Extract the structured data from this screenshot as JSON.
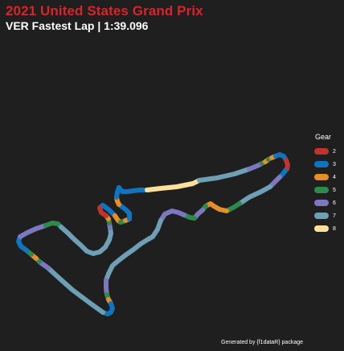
{
  "chart_data": {
    "type": "track-map",
    "title": "2021 United States Grand Prix",
    "subtitle": "VER Fastest Lap | 1:39.096",
    "caption": "Generated by {f1dataR} package",
    "legend": {
      "title": "Gear",
      "position": "right",
      "entries": [
        {
          "label": "2",
          "gear": 2,
          "color": "#c2342b"
        },
        {
          "label": "3",
          "gear": 3,
          "color": "#0f75c0"
        },
        {
          "label": "4",
          "gear": 4,
          "color": "#e78e2a"
        },
        {
          "label": "5",
          "gear": 5,
          "color": "#2c8a4b"
        },
        {
          "label": "6",
          "gear": 6,
          "color": "#7d76c1"
        },
        {
          "label": "7",
          "gear": 7,
          "color": "#6d9fb5"
        },
        {
          "label": "8",
          "gear": 8,
          "color": "#fde09b"
        }
      ]
    },
    "segments": [
      {
        "gear": 3,
        "x": [
          148,
          152,
          158,
          166,
          174,
          183
        ],
        "y": [
          233,
          238,
          238,
          237,
          236,
          236
        ]
      },
      {
        "gear": 8,
        "x": [
          183,
          200,
          220,
          240,
          248
        ],
        "y": [
          236,
          234,
          232,
          228,
          224
        ]
      },
      {
        "gear": 7,
        "x": [
          248,
          270,
          292,
          310
        ],
        "y": [
          224,
          221,
          216,
          210
        ]
      },
      {
        "gear": 6,
        "x": [
          310,
          320,
          326
        ],
        "y": [
          210,
          206,
          203
        ]
      },
      {
        "gear": 5,
        "x": [
          326,
          330
        ],
        "y": [
          203,
          201
        ]
      },
      {
        "gear": 4,
        "x": [
          330,
          334
        ],
        "y": [
          201,
          198
        ]
      },
      {
        "gear": 5,
        "x": [
          334,
          338
        ],
        "y": [
          198,
          196
        ]
      },
      {
        "gear": 4,
        "x": [
          338,
          343
        ],
        "y": [
          196,
          194
        ]
      },
      {
        "gear": 3,
        "x": [
          343,
          348,
          353,
          356
        ],
        "y": [
          194,
          192,
          194,
          199
        ]
      },
      {
        "gear": 2,
        "x": [
          356,
          358,
          357,
          355
        ],
        "y": [
          199,
          205,
          210,
          212
        ]
      },
      {
        "gear": 3,
        "x": [
          355,
          352,
          348
        ],
        "y": [
          212,
          216,
          220
        ]
      },
      {
        "gear": 6,
        "x": [
          348,
          342,
          336
        ],
        "y": [
          220,
          226,
          232
        ]
      },
      {
        "gear": 7,
        "x": [
          336,
          325,
          310,
          298
        ],
        "y": [
          232,
          238,
          245,
          253
        ]
      },
      {
        "gear": 5,
        "x": [
          298,
          290,
          282
        ],
        "y": [
          253,
          258,
          262
        ]
      },
      {
        "gear": 4,
        "x": [
          282,
          273,
          266,
          262,
          256
        ],
        "y": [
          262,
          260,
          256,
          253,
          256
        ]
      },
      {
        "gear": 5,
        "x": [
          256,
          252
        ],
        "y": [
          256,
          261
        ]
      },
      {
        "gear": 6,
        "x": [
          252,
          246,
          242
        ],
        "y": [
          261,
          266,
          271
        ]
      },
      {
        "gear": 5,
        "x": [
          242,
          236,
          229
        ],
        "y": [
          271,
          270,
          267
        ]
      },
      {
        "gear": 6,
        "x": [
          229,
          222,
          214,
          205,
          200
        ],
        "y": [
          267,
          264,
          262,
          266,
          274
        ]
      },
      {
        "gear": 7,
        "x": [
          200,
          196,
          190,
          183,
          175,
          166,
          156,
          147,
          140,
          135,
          132
        ],
        "y": [
          274,
          285,
          294,
          298,
          303,
          310,
          317,
          324,
          330,
          340,
          348
        ]
      },
      {
        "gear": 6,
        "x": [
          132,
          132,
          133
        ],
        "y": [
          348,
          358,
          366
        ]
      },
      {
        "gear": 5,
        "x": [
          133,
          135
        ],
        "y": [
          366,
          372
        ]
      },
      {
        "gear": 4,
        "x": [
          135,
          138
        ],
        "y": [
          372,
          377
        ]
      },
      {
        "gear": 3,
        "x": [
          138,
          140,
          138,
          134,
          128
        ],
        "y": [
          377,
          383,
          388,
          390,
          388
        ]
      },
      {
        "gear": 7,
        "x": [
          128,
          110,
          90,
          72,
          60
        ],
        "y": [
          388,
          375,
          360,
          344,
          333
        ]
      },
      {
        "gear": 6,
        "x": [
          60,
          53,
          49
        ],
        "y": [
          333,
          328,
          325
        ]
      },
      {
        "gear": 5,
        "x": [
          49,
          45
        ],
        "y": [
          325,
          321
        ]
      },
      {
        "gear": 4,
        "x": [
          45,
          39
        ],
        "y": [
          321,
          316
        ]
      },
      {
        "gear": 5,
        "x": [
          39,
          33
        ],
        "y": [
          316,
          311
        ]
      },
      {
        "gear": 3,
        "x": [
          33,
          26,
          23,
          25
        ],
        "y": [
          311,
          306,
          300,
          294
        ]
      },
      {
        "gear": 6,
        "x": [
          25,
          34,
          45,
          57
        ],
        "y": [
          294,
          289,
          284,
          280
        ]
      },
      {
        "gear": 5,
        "x": [
          57,
          65,
          72,
          76
        ],
        "y": [
          280,
          277,
          278,
          282
        ]
      },
      {
        "gear": 7,
        "x": [
          76,
          84,
          92,
          101,
          108,
          116,
          124,
          131,
          136,
          138,
          137
        ],
        "y": [
          282,
          289,
          297,
          305,
          312,
          315,
          313,
          307,
          298,
          290,
          283
        ]
      },
      {
        "gear": 6,
        "x": [
          137,
          136
        ],
        "y": [
          283,
          277
        ]
      },
      {
        "gear": 5,
        "x": [
          136,
          135
        ],
        "y": [
          277,
          272
        ]
      },
      {
        "gear": 4,
        "x": [
          135,
          132
        ],
        "y": [
          272,
          268
        ]
      },
      {
        "gear": 2,
        "x": [
          132,
          126,
          124,
          128
        ],
        "y": [
          268,
          264,
          258,
          255
        ]
      },
      {
        "gear": 3,
        "x": [
          128,
          136,
          143
        ],
        "y": [
          255,
          261,
          268
        ]
      },
      {
        "gear": 4,
        "x": [
          143,
          147,
          150
        ],
        "y": [
          268,
          274,
          276
        ]
      },
      {
        "gear": 5,
        "x": [
          150,
          156
        ],
        "y": [
          276,
          274
        ]
      },
      {
        "gear": 4,
        "x": [
          156,
          161
        ],
        "y": [
          274,
          272
        ]
      },
      {
        "gear": 3,
        "x": [
          161,
          161,
          156,
          148
        ],
        "y": [
          272,
          265,
          260,
          254
        ]
      },
      {
        "gear": 4,
        "x": [
          148,
          146,
          145
        ],
        "y": [
          254,
          250,
          245
        ]
      },
      {
        "gear": 3,
        "x": [
          145,
          146,
          148
        ],
        "y": [
          245,
          239,
          233
        ]
      }
    ]
  }
}
